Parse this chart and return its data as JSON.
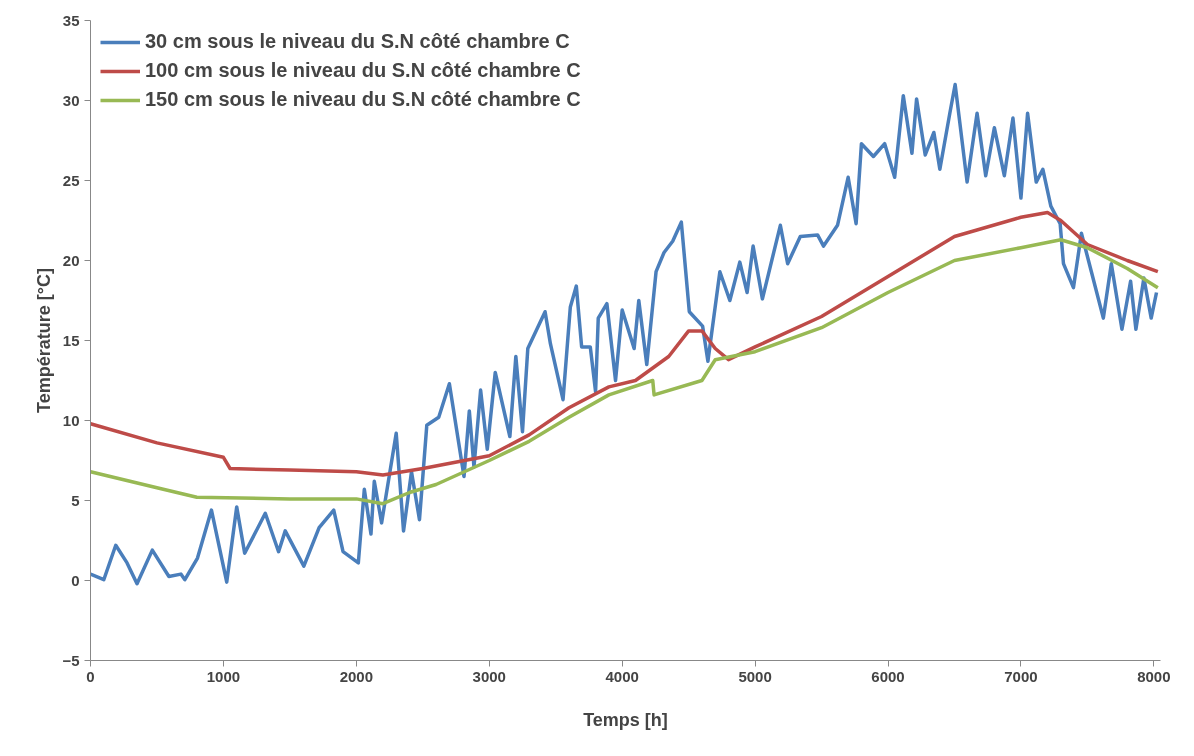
{
  "chart_data": {
    "type": "line",
    "xlabel": "Temps [h]",
    "ylabel": "Température [°C]",
    "xlim": [
      0,
      8050
    ],
    "ylim": [
      -5,
      35
    ],
    "xticks": [
      0,
      1000,
      2000,
      3000,
      4000,
      5000,
      6000,
      7000,
      8000
    ],
    "yticks": [
      -5,
      0,
      5,
      10,
      15,
      20,
      25,
      30,
      35
    ],
    "grid": false,
    "legend": "top left",
    "marker": "none",
    "line_style": "solid",
    "series": [
      {
        "name": "30 cm sous le niveau du S.N côté chambre C",
        "color": "#4a7ebb",
        "x": [
          0,
          100,
          190,
          275,
          350,
          465,
          590,
          680,
          710,
          805,
          910,
          1025,
          1100,
          1160,
          1315,
          1415,
          1465,
          1605,
          1720,
          1830,
          1900,
          2015,
          2060,
          2110,
          2135,
          2190,
          2300,
          2355,
          2415,
          2475,
          2530,
          2620,
          2700,
          2810,
          2850,
          2885,
          2935,
          2985,
          3045,
          3155,
          3200,
          3250,
          3290,
          3420,
          3460,
          3555,
          3610,
          3655,
          3695,
          3760,
          3800,
          3820,
          3885,
          3950,
          4000,
          4090,
          4125,
          4185,
          4255,
          4315,
          4380,
          4445,
          4505,
          4605,
          4645,
          4735,
          4810,
          4885,
          4940,
          4985,
          5055,
          5190,
          5245,
          5340,
          5470,
          5515,
          5620,
          5700,
          5760,
          5800,
          5890,
          5975,
          6050,
          6115,
          6180,
          6215,
          6280,
          6345,
          6390,
          6465,
          6505,
          6595,
          6670,
          6735,
          6800,
          6875,
          6940,
          7000,
          7050,
          7115,
          7165,
          7225,
          7295,
          7320,
          7395,
          7455,
          7530,
          7620,
          7680,
          7760,
          7825,
          7865,
          7925,
          7980,
          8020
        ],
        "values": [
          0.4,
          0.05,
          2.2,
          1.1,
          -0.2,
          1.9,
          0.25,
          0.4,
          0.05,
          1.4,
          4.4,
          -0.1,
          4.6,
          1.7,
          4.2,
          1.8,
          3.1,
          0.9,
          3.3,
          4.4,
          1.8,
          1.1,
          5.7,
          2.9,
          6.2,
          3.6,
          9.2,
          3.1,
          6.8,
          3.8,
          9.7,
          10.2,
          12.3,
          6.5,
          10.6,
          7.1,
          11.9,
          8.2,
          13.0,
          9.0,
          14.0,
          9.3,
          14.5,
          16.8,
          14.8,
          11.3,
          17.1,
          18.4,
          14.6,
          14.6,
          11.8,
          16.4,
          17.3,
          12.5,
          16.9,
          14.5,
          17.5,
          13.5,
          19.3,
          20.5,
          21.2,
          22.4,
          16.8,
          15.9,
          13.7,
          19.3,
          17.5,
          19.9,
          18.0,
          20.9,
          17.6,
          22.2,
          19.8,
          21.5,
          21.6,
          20.9,
          22.2,
          25.2,
          22.3,
          27.3,
          26.5,
          27.3,
          25.2,
          30.3,
          26.7,
          30.1,
          26.6,
          28.0,
          25.7,
          29.2,
          31.0,
          24.9,
          29.2,
          25.3,
          28.3,
          25.3,
          28.9,
          23.9,
          29.2,
          24.9,
          25.7,
          23.4,
          22.3,
          19.8,
          18.3,
          21.7,
          19.3,
          16.4,
          19.8,
          15.7,
          18.7,
          15.7,
          18.9,
          16.4,
          18.0
        ]
      },
      {
        "name": "100 cm sous le niveau du S.N côté chambre C",
        "color": "#be4b48",
        "x": [
          0,
          500,
          1000,
          1050,
          1500,
          2000,
          2200,
          2500,
          3000,
          3300,
          3600,
          3900,
          4100,
          4350,
          4500,
          4600,
          4700,
          4800,
          5000,
          5500,
          6000,
          6500,
          7000,
          7200,
          7300,
          7500,
          7800,
          8030
        ],
        "values": [
          9.8,
          8.6,
          7.7,
          7.0,
          6.9,
          6.8,
          6.6,
          7.0,
          7.8,
          9.1,
          10.8,
          12.1,
          12.5,
          14.0,
          15.6,
          15.6,
          14.5,
          13.8,
          14.6,
          16.5,
          19.0,
          21.5,
          22.7,
          23.0,
          22.5,
          21.0,
          20.0,
          19.3
        ]
      },
      {
        "name": "150 cm sous le niveau du S.N côté chambre C",
        "color": "#98b954",
        "x": [
          0,
          500,
          800,
          1500,
          2000,
          2200,
          2400,
          2600,
          3000,
          3300,
          3600,
          3900,
          4230,
          4240,
          4600,
          4700,
          5000,
          5500,
          6000,
          6500,
          7000,
          7300,
          7500,
          7800,
          8030
        ],
        "values": [
          6.8,
          5.8,
          5.2,
          5.1,
          5.1,
          4.8,
          5.5,
          6.0,
          7.5,
          8.7,
          10.2,
          11.6,
          12.5,
          11.6,
          12.5,
          13.8,
          14.3,
          15.8,
          18.0,
          20.0,
          20.8,
          21.3,
          20.8,
          19.5,
          18.3
        ]
      }
    ]
  }
}
